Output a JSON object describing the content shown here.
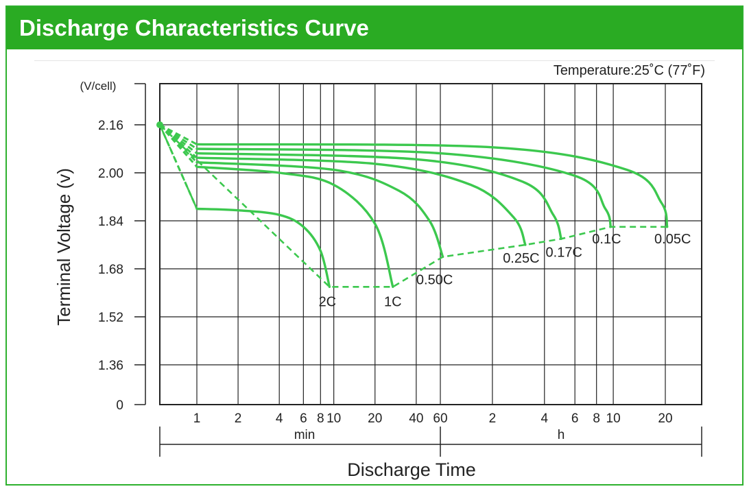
{
  "header": {
    "title": "Discharge Characteristics Curve"
  },
  "chart_data": {
    "type": "line",
    "title": "Discharge Characteristics Curve",
    "annotation": "Temperature:25˚C (77˚F)",
    "ylabel": "Terminal  Voltage  (v)",
    "yunit": "(V/cell)",
    "xlabel": "Discharge  Time",
    "x_groups": [
      {
        "label": "min",
        "ticks": [
          "1",
          "2",
          "4",
          "6",
          "8",
          "10",
          "20",
          "40",
          "60"
        ]
      },
      {
        "label": "h",
        "ticks": [
          "2",
          "4",
          "6",
          "8",
          "10",
          "20"
        ]
      }
    ],
    "y_ticks": [
      "2.16",
      "2.00",
      "1.84",
      "1.68",
      "1.52",
      "1.36",
      "0"
    ],
    "grid": true,
    "x_scale": "log",
    "colors": {
      "curve": "#3cc84e",
      "grid": "#222222",
      "banner": "#2aab23"
    },
    "series": [
      {
        "name": "2C",
        "points": [
          [
            0,
            2.16
          ],
          [
            1,
            1.88
          ],
          [
            2,
            1.875
          ],
          [
            4,
            1.86
          ],
          [
            6,
            1.82
          ],
          [
            8,
            1.74
          ],
          [
            9.3,
            1.62
          ]
        ],
        "end": [
          9.3,
          1.62
        ]
      },
      {
        "name": "1C",
        "points": [
          [
            0,
            2.16
          ],
          [
            1,
            2.02
          ],
          [
            4,
            2.0
          ],
          [
            10,
            1.96
          ],
          [
            20,
            1.83
          ],
          [
            27,
            1.62
          ]
        ],
        "end": [
          27,
          1.62
        ]
      },
      {
        "name": "0.50C",
        "points": [
          [
            0,
            2.16
          ],
          [
            1,
            2.035
          ],
          [
            10,
            2.01
          ],
          [
            30,
            1.94
          ],
          [
            50,
            1.84
          ],
          [
            62,
            1.72
          ]
        ],
        "end": [
          62,
          1.72
        ]
      },
      {
        "name": "0.25C",
        "points": [
          [
            0,
            2.16
          ],
          [
            1,
            2.05
          ],
          [
            20,
            2.03
          ],
          [
            90,
            1.96
          ],
          [
            160,
            1.85
          ],
          [
            186,
            1.76
          ]
        ],
        "end": [
          186,
          1.76
        ]
      },
      {
        "name": "0.17C",
        "points": [
          [
            0,
            2.16
          ],
          [
            1,
            2.065
          ],
          [
            40,
            2.045
          ],
          [
            180,
            1.97
          ],
          [
            270,
            1.86
          ],
          [
            300,
            1.78
          ]
        ],
        "end": [
          300,
          1.78
        ]
      },
      {
        "name": "0.1C",
        "points": [
          [
            0,
            2.16
          ],
          [
            1,
            2.08
          ],
          [
            60,
            2.065
          ],
          [
            360,
            1.99
          ],
          [
            540,
            1.88
          ],
          [
            580,
            1.82
          ]
        ],
        "end": [
          580,
          1.82
        ]
      },
      {
        "name": "0.05C",
        "points": [
          [
            0,
            2.16
          ],
          [
            1,
            2.095
          ],
          [
            120,
            2.085
          ],
          [
            720,
            2.01
          ],
          [
            1140,
            1.9
          ],
          [
            1230,
            1.82
          ]
        ],
        "end": [
          1230,
          1.82
        ]
      }
    ],
    "cutoff_line": [
      [
        1,
        1.88
      ],
      [
        0,
        2.16
      ],
      [
        9.3,
        1.62
      ],
      [
        27,
        1.62
      ],
      [
        62,
        1.72
      ],
      [
        186,
        1.76
      ],
      [
        300,
        1.78
      ],
      [
        580,
        1.82
      ],
      [
        1230,
        1.82
      ]
    ]
  }
}
